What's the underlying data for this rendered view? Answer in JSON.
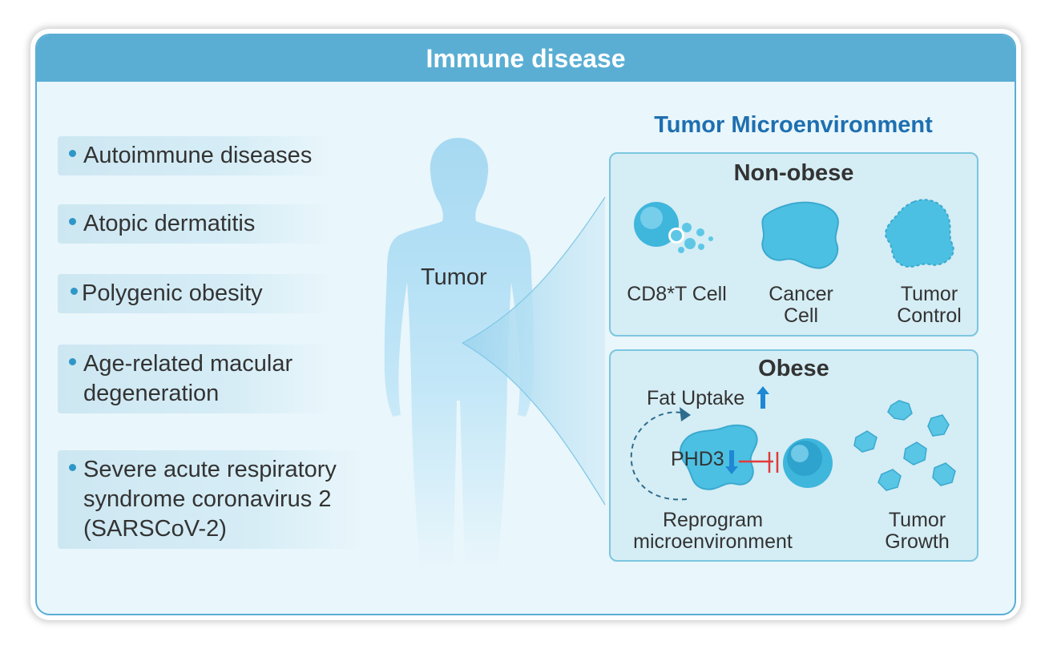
{
  "header": {
    "title": "Immune disease"
  },
  "diseases": [
    {
      "label": "Autoimmune diseases"
    },
    {
      "label": "Atopic dermatitis"
    },
    {
      "label": "Polygenic obesity"
    },
    {
      "label": "Age-related macular degeneration"
    },
    {
      "label": "Severe acute respiratory syndrome coronavirus 2 (SARSCoV-2)"
    }
  ],
  "body_figure": {
    "label": "Tumor"
  },
  "tme": {
    "title": "Tumor Microenvironment",
    "non_obese": {
      "title": "Non-obese",
      "cd8_label": "CD8*T Cell",
      "cancer_label": "Cancer Cell",
      "control_label": "Tumor Control"
    },
    "obese": {
      "title": "Obese",
      "fat_uptake": "Fat Uptake",
      "phd3": "PHD3",
      "reprogram_label": "Reprogram microenvironment",
      "growth_label": "Tumor Growth"
    }
  },
  "colors": {
    "header": "#5aaed4",
    "panel_bg": "#e9f6fb",
    "title_blue": "#1e6fb0",
    "cell_blue": "#3fb6dc",
    "inhibit_red": "#e03a3a",
    "arrow_blue": "#1e88d4"
  }
}
